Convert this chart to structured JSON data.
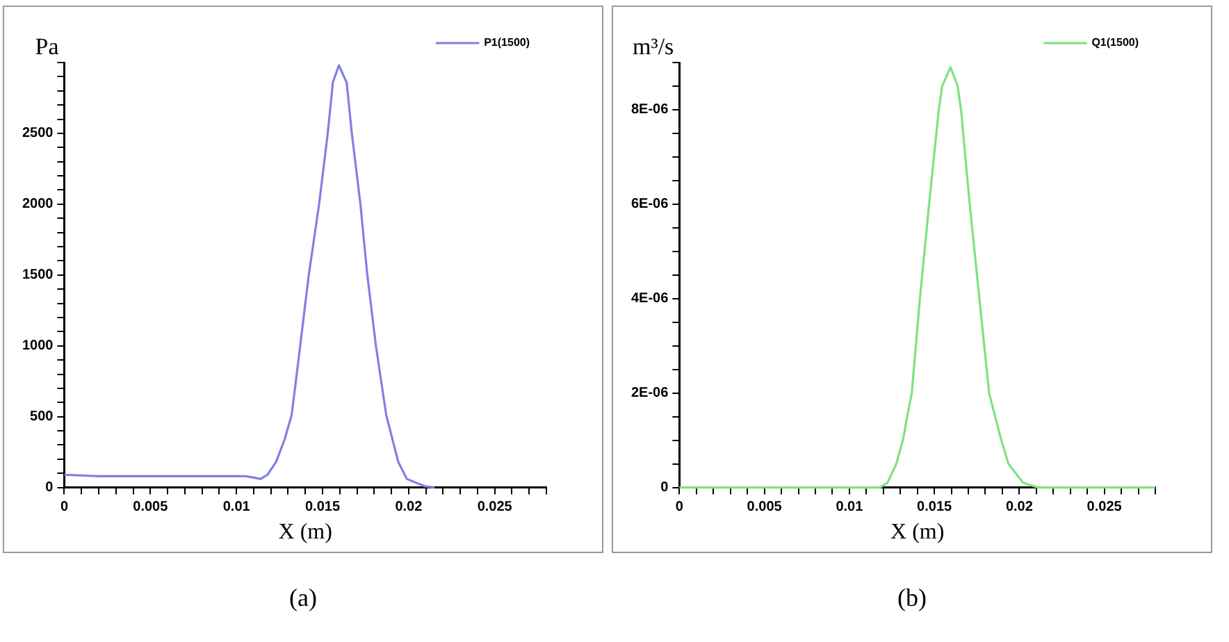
{
  "chart_data": [
    {
      "type": "line",
      "xlabel": "X (m)",
      "ylabel": "Pa",
      "legend": "top right",
      "grid": false,
      "annotations": [
        "(a)"
      ],
      "xlim": [
        0,
        0.028
      ],
      "ylim": [
        0,
        3000
      ],
      "xticks": [
        0,
        {
          "value": 0.001,
          "label": null
        },
        {
          "value": 0.002,
          "label": null
        },
        {
          "value": 0.003,
          "label": null
        },
        {
          "value": 0.004,
          "label": null
        },
        0.005,
        {
          "value": 0.006,
          "label": null
        },
        {
          "value": 0.007,
          "label": null
        },
        {
          "value": 0.008,
          "label": null
        },
        {
          "value": 0.009,
          "label": null
        },
        0.01,
        {
          "value": 0.011,
          "label": null
        },
        {
          "value": 0.012,
          "label": null
        },
        {
          "value": 0.013,
          "label": null
        },
        {
          "value": 0.014,
          "label": null
        },
        0.015,
        {
          "value": 0.016,
          "label": null
        },
        {
          "value": 0.017,
          "label": null
        },
        {
          "value": 0.018,
          "label": null
        },
        {
          "value": 0.019,
          "label": null
        },
        0.02,
        {
          "value": 0.021,
          "label": null
        },
        {
          "value": 0.022,
          "label": null
        },
        {
          "value": 0.023,
          "label": null
        },
        {
          "value": 0.024,
          "label": null
        },
        0.025,
        {
          "value": 0.026,
          "label": null
        },
        {
          "value": 0.027,
          "label": null
        },
        {
          "value": 0.028,
          "label": null
        }
      ],
      "yticks": [
        0,
        {
          "value": 100,
          "label": null
        },
        {
          "value": 200,
          "label": null
        },
        {
          "value": 300,
          "label": null
        },
        {
          "value": 400,
          "label": null
        },
        500,
        {
          "value": 600,
          "label": null
        },
        {
          "value": 700,
          "label": null
        },
        {
          "value": 800,
          "label": null
        },
        {
          "value": 900,
          "label": null
        },
        1000,
        {
          "value": 1100,
          "label": null
        },
        {
          "value": 1200,
          "label": null
        },
        {
          "value": 1300,
          "label": null
        },
        {
          "value": 1400,
          "label": null
        },
        1500,
        {
          "value": 1600,
          "label": null
        },
        {
          "value": 1700,
          "label": null
        },
        {
          "value": 1800,
          "label": null
        },
        {
          "value": 1900,
          "label": null
        },
        2000,
        {
          "value": 2100,
          "label": null
        },
        {
          "value": 2200,
          "label": null
        },
        {
          "value": 2300,
          "label": null
        },
        {
          "value": 2400,
          "label": null
        },
        2500,
        {
          "value": 2600,
          "label": null
        },
        {
          "value": 2700,
          "label": null
        },
        {
          "value": 2800,
          "label": null
        },
        {
          "value": 2900,
          "label": null
        },
        {
          "value": 3000,
          "label": null
        }
      ],
      "series": [
        {
          "name": "P1(1500)",
          "color": "#8080e0",
          "x": [
            0,
            0.002,
            0.004,
            0.006,
            0.008,
            0.01,
            0.0105,
            0.011,
            0.0114,
            0.0118,
            0.0123,
            0.0128,
            0.0132,
            0.0134,
            0.0137,
            0.0142,
            0.0148,
            0.0153,
            0.0156,
            0.01595,
            0.0164,
            0.0167,
            0.0172,
            0.0176,
            0.0181,
            0.0187,
            0.0194,
            0.0199,
            0.0209,
            0.0215
          ],
          "values": [
            90,
            80,
            80,
            80,
            80,
            80,
            80,
            70,
            60,
            90,
            180,
            340,
            510,
            700,
            1000,
            1500,
            2000,
            2500,
            2860,
            2980,
            2860,
            2500,
            2000,
            1500,
            1000,
            510,
            180,
            60,
            10,
            0
          ]
        }
      ]
    },
    {
      "type": "line",
      "xlabel": "X (m)",
      "ylabel": "m³/s",
      "legend": "top right",
      "grid": false,
      "annotations": [
        "(b)"
      ],
      "xlim": [
        0,
        0.028
      ],
      "ylim": [
        0,
        9e-06
      ],
      "xticks": [
        0,
        {
          "value": 0.001,
          "label": null
        },
        {
          "value": 0.002,
          "label": null
        },
        {
          "value": 0.003,
          "label": null
        },
        {
          "value": 0.004,
          "label": null
        },
        0.005,
        {
          "value": 0.006,
          "label": null
        },
        {
          "value": 0.007,
          "label": null
        },
        {
          "value": 0.008,
          "label": null
        },
        {
          "value": 0.009,
          "label": null
        },
        0.01,
        {
          "value": 0.011,
          "label": null
        },
        {
          "value": 0.012,
          "label": null
        },
        {
          "value": 0.013,
          "label": null
        },
        {
          "value": 0.014,
          "label": null
        },
        0.015,
        {
          "value": 0.016,
          "label": null
        },
        {
          "value": 0.017,
          "label": null
        },
        {
          "value": 0.018,
          "label": null
        },
        {
          "value": 0.019,
          "label": null
        },
        0.02,
        {
          "value": 0.021,
          "label": null
        },
        {
          "value": 0.022,
          "label": null
        },
        {
          "value": 0.023,
          "label": null
        },
        {
          "value": 0.024,
          "label": null
        },
        0.025,
        {
          "value": 0.026,
          "label": null
        },
        {
          "value": 0.027,
          "label": null
        },
        {
          "value": 0.028,
          "label": null
        }
      ],
      "yticks": [
        0,
        {
          "value": 5e-07,
          "label": null
        },
        {
          "value": 1e-06,
          "label": null
        },
        {
          "value": 1.5e-06,
          "label": null
        },
        {
          "value": 2e-06,
          "label": "2E-06"
        },
        {
          "value": 2.5e-06,
          "label": null
        },
        {
          "value": 3e-06,
          "label": null
        },
        {
          "value": 3.5e-06,
          "label": null
        },
        {
          "value": 4e-06,
          "label": "4E-06"
        },
        {
          "value": 4.5e-06,
          "label": null
        },
        {
          "value": 5e-06,
          "label": null
        },
        {
          "value": 5.5e-06,
          "label": null
        },
        {
          "value": 6e-06,
          "label": "6E-06"
        },
        {
          "value": 6.5e-06,
          "label": null
        },
        {
          "value": 7e-06,
          "label": null
        },
        {
          "value": 7.5e-06,
          "label": null
        },
        {
          "value": 8e-06,
          "label": "8E-06"
        },
        {
          "value": 8.5e-06,
          "label": null
        },
        {
          "value": 9e-06,
          "label": null
        }
      ],
      "series": [
        {
          "name": "Q1(1500)",
          "color": "#80e080",
          "x": [
            0,
            0.005,
            0.01,
            0.0118,
            0.01224,
            0.01276,
            0.01315,
            0.0134,
            0.01367,
            0.01415,
            0.01469,
            0.01526,
            0.01546,
            0.01595,
            0.01637,
            0.01657,
            0.01708,
            0.01765,
            0.01822,
            0.01894,
            0.01936,
            0.02022,
            0.02107,
            0.022,
            0.025,
            0.028
          ],
          "values": [
            0,
            0,
            0,
            0,
            1e-07,
            5e-07,
            1e-06,
            1.5e-06,
            2e-06,
            4e-06,
            6e-06,
            8e-06,
            8.5e-06,
            8.9e-06,
            8.5e-06,
            8e-06,
            6e-06,
            4e-06,
            2e-06,
            1e-06,
            5e-07,
            1e-07,
            0,
            0,
            0,
            0
          ]
        }
      ]
    }
  ]
}
